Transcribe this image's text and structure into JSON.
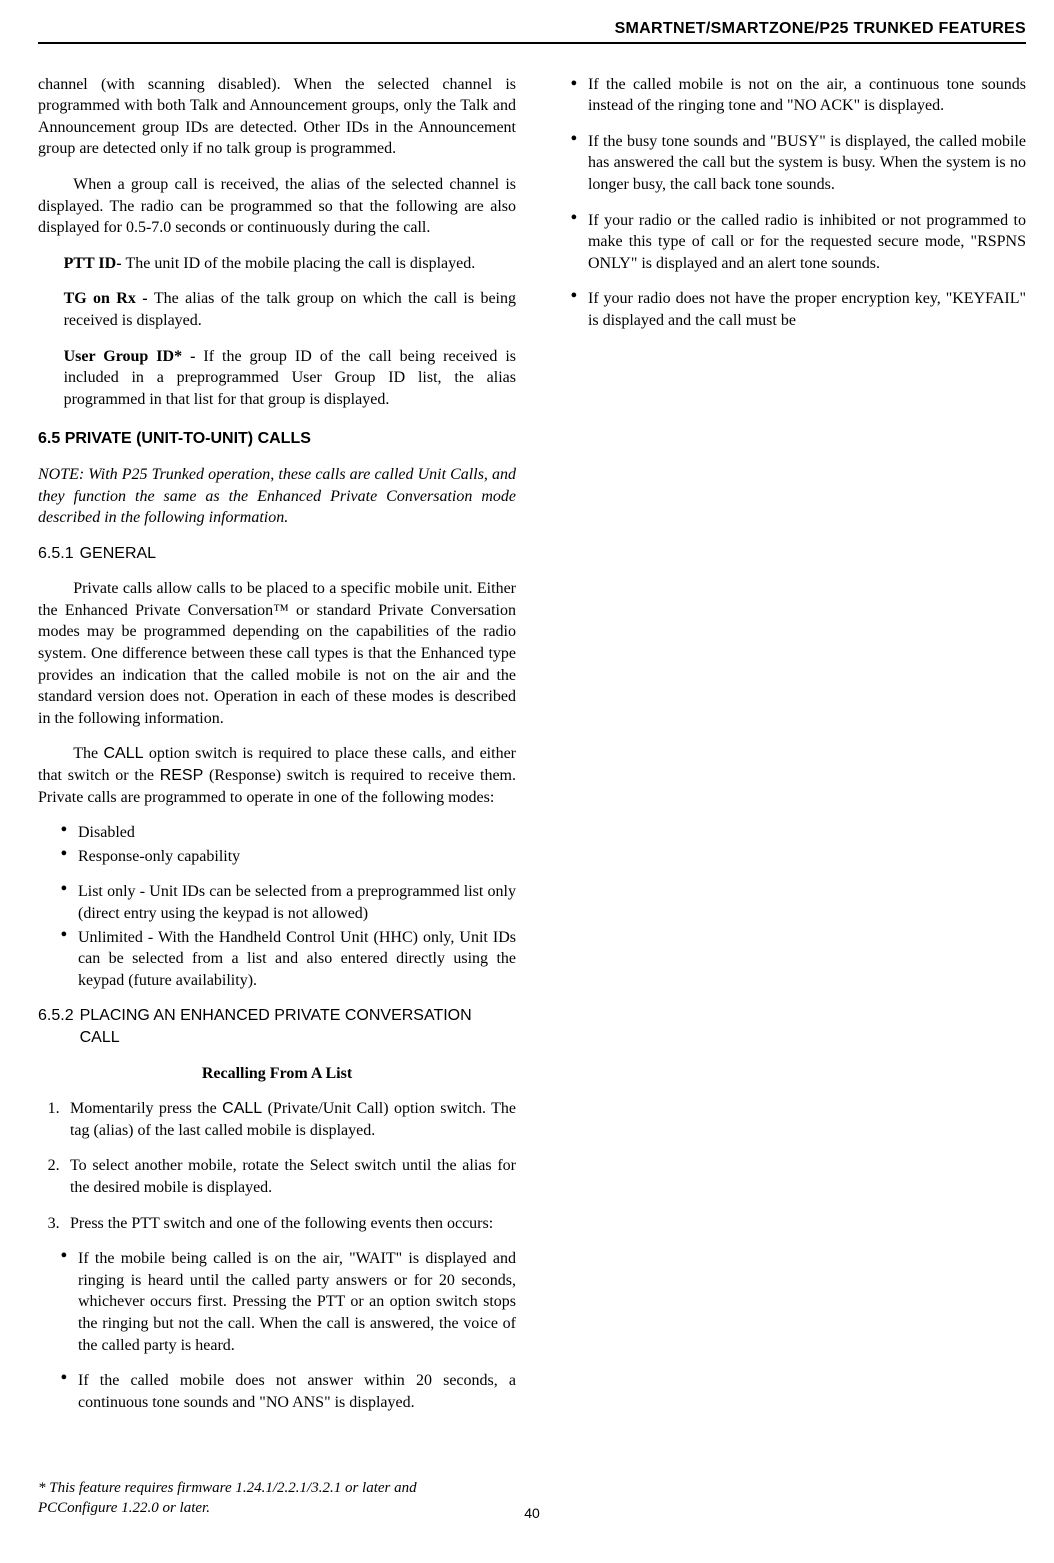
{
  "header": {
    "title": "SMARTNET/SMARTZONE/P25 TRUNKED FEATURES"
  },
  "col1": {
    "p1": "channel (with scanning disabled). When the selected channel is programmed with both Talk and Announcement groups, only the Talk and Announcement group IDs are detected. Other IDs in the Announcement group are detected only if no talk group is programmed.",
    "p2": "When a group call is received, the alias of the selected channel is displayed. The radio can be programmed so that the following are also displayed for 0.5-7.0 seconds or continuously during the call.",
    "items": [
      {
        "lead": "PTT ID- ",
        "text": "The unit ID of the mobile placing the call is displayed."
      },
      {
        "lead": "TG on Rx - ",
        "text": "The alias of the talk group on which the call is being received is displayed."
      },
      {
        "lead": "User Group ID* - ",
        "text": "If the group ID of the call being received is included in a preprogrammed User Group ID list, the alias programmed in that list for that group is displayed."
      }
    ],
    "h65": "6.5 PRIVATE (UNIT-TO-UNIT) CALLS",
    "note": "NOTE: With P25 Trunked operation, these calls are called Unit Calls, and they function the same as the Enhanced Private Conversation mode described in the following information.",
    "h651_num": "6.5.1",
    "h651_text": "GENERAL",
    "p651a": "Private calls allow calls to be placed to a specific mobile unit. Either the Enhanced Private Conversation™ or standard Private Conversation modes may be programmed depending on the capabilities of the radio system. One difference between these call types is that the Enhanced type provides an indication that the called mobile is not on the air and the standard version does not. Operation in each of these modes is described in the following information.",
    "p651b_pre": "The ",
    "p651b_call": "CALL",
    "p651b_mid": " option switch is required to place these calls, and either that switch or the ",
    "p651b_resp": "RESP",
    "p651b_post": " (Response) switch is required to receive them. Private calls are programmed to operate in one of the following modes:",
    "modes": [
      "Disabled",
      "Response-only capability"
    ]
  },
  "col2": {
    "modes_cont": [
      "List only - Unit IDs can be selected from a preprogrammed list only (direct entry using the keypad is not allowed)",
      "Unlimited - With the Handheld Control Unit (HHC) only, Unit IDs can be selected from a list and also entered directly using the keypad (future availability)."
    ],
    "h652_num": "6.5.2",
    "h652_text": "PLACING AN ENHANCED PRIVATE CONVERSATION CALL",
    "recall_heading": "Recalling From A List",
    "step1_pre": "Momentarily press the ",
    "step1_call": "CALL",
    "step1_post": " (Private/Unit Call) option switch. The tag (alias) of the last called mobile is displayed.",
    "step2": "To select another mobile, rotate the Select switch until the alias for the desired mobile is displayed.",
    "step3": "Press the PTT switch and one of the following events then occurs:",
    "events": [
      "If the mobile being called is on the air, \"WAIT\" is displayed and ringing is heard until the called party answers or for 20 seconds, whichever occurs first. Pressing the PTT or an option switch stops the ringing but not the call. When the call is answered, the voice of the called party is heard.",
      "If the called mobile does not answer within 20 seconds, a continuous tone sounds and \"NO ANS\" is displayed.",
      "If the called mobile is not on the air, a continuous tone sounds instead of the ringing tone and \"NO ACK\" is displayed.",
      "If the busy tone sounds and \"BUSY\" is displayed, the called mobile has answered the call but the system is busy. When the system is no longer busy, the call back tone sounds.",
      "If your radio or the called radio is inhibited or not programmed to make this type of call or for the requested secure mode, \"RSPNS ONLY\" is displayed and an alert tone sounds.",
      "If your radio does not have the proper encryption key, \"KEYFAIL\" is displayed and the call must be"
    ]
  },
  "footnote": "* This feature requires firmware 1.24.1/2.2.1/3.2.1 or later and PCConfigure 1.22.0 or later.",
  "page_number": "40"
}
